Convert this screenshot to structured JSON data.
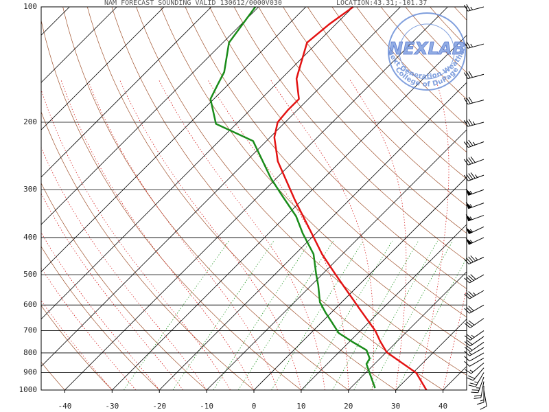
{
  "chart_data": {
    "type": "skewt",
    "title": "NAM FORECAST SOUNDING VALID 130612/0000V030",
    "location": "LOCATION:43.31;-101.37",
    "xlim": [
      -45,
      45
    ],
    "xticks": [
      -40,
      -30,
      -20,
      -10,
      0,
      10,
      20,
      30,
      40
    ],
    "ylim": [
      1000,
      100
    ],
    "yticks": [
      100,
      200,
      300,
      400,
      500,
      600,
      700,
      800,
      900,
      1000
    ],
    "log_y": true,
    "series": [
      {
        "color": "#e31212",
        "pressure": [
          1000,
          902,
          797,
          746,
          701,
          614,
          500,
          442,
          390,
          318,
          253,
          219,
          200,
          186,
          174,
          154,
          148,
          124,
          111,
          100
        ],
        "values": [
          36.5,
          30.7,
          20.1,
          16.4,
          13.2,
          5.2,
          -7.1,
          -14.3,
          -20.9,
          -31.7,
          -43.3,
          -49.1,
          -51.6,
          -52.0,
          -52.0,
          -56.8,
          -57.8,
          -62.2,
          -61.4,
          -60.0
        ]
      },
      {
        "color": "#1a8c1a",
        "pressure": [
          988,
          909,
          855,
          827,
          787,
          749,
          710,
          667,
          627,
          590,
          532,
          500,
          442,
          390,
          352,
          311,
          280,
          224,
          202,
          174,
          159,
          148,
          124,
          100
        ],
        "values": [
          25.2,
          21.2,
          18.3,
          17.8,
          15.4,
          10.7,
          5.9,
          2.3,
          -1.3,
          -4.6,
          -8.6,
          -11.2,
          -16.1,
          -22.8,
          -27.8,
          -35.1,
          -41.2,
          -52.8,
          -64.3,
          -70.7,
          -72.3,
          -73.5,
          -78.7,
          -80.7
        ]
      }
    ],
    "wind": {
      "pressure": [
        1000,
        975,
        950,
        925,
        900,
        875,
        850,
        825,
        800,
        775,
        750,
        725,
        700,
        650,
        600,
        550,
        500,
        450,
        400,
        375,
        350,
        325,
        300,
        275,
        250,
        225,
        200,
        175,
        150,
        125,
        100
      ],
      "speed": [
        10,
        15,
        20,
        25,
        25,
        20,
        15,
        10,
        10,
        15,
        20,
        20,
        25,
        30,
        30,
        35,
        40,
        45,
        55,
        55,
        55,
        55,
        55,
        45,
        40,
        35,
        35,
        30,
        30,
        25,
        25
      ],
      "direction": [
        170,
        180,
        190,
        200,
        210,
        220,
        230,
        240,
        240,
        240,
        235,
        235,
        235,
        235,
        240,
        240,
        240,
        245,
        245,
        245,
        250,
        250,
        250,
        250,
        250,
        250,
        255,
        255,
        255,
        255,
        255
      ],
      "color": "#000000"
    },
    "logo": {
      "title": "NEXLAB",
      "top_text": "Next Generation Weather Lab",
      "bottom_text": "College of DuPage",
      "color": "#6a8fd8"
    }
  }
}
